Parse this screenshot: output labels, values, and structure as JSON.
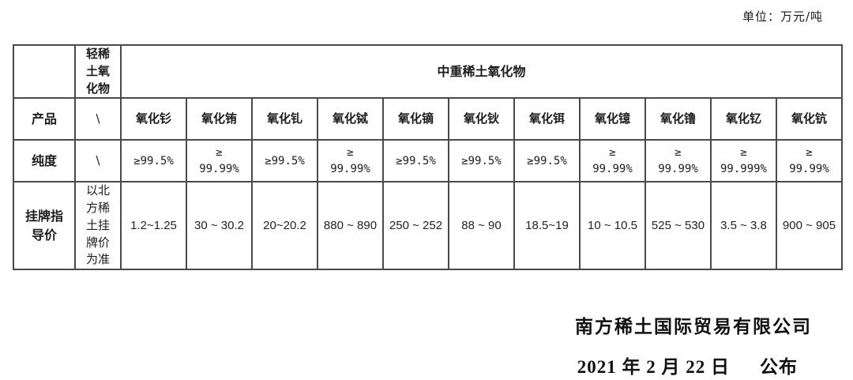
{
  "unit_label": "单位：万元/吨",
  "table": {
    "light_group_header": [
      "轻稀",
      "土氧",
      "化物"
    ],
    "heavy_group_header": "中重稀土氧化物",
    "row_labels": {
      "product": "产品",
      "purity": "纯度",
      "price": [
        "挂牌指",
        "导价"
      ]
    },
    "light_column": {
      "product": "\\",
      "purity": "\\",
      "price_basis": [
        "以北",
        "方稀",
        "土挂",
        "牌价",
        "为准"
      ]
    },
    "columns": [
      {
        "name": "氧化钐",
        "purity": [
          "≥99.5%"
        ],
        "price": "1.2~1.25"
      },
      {
        "name": "氧化铕",
        "purity": [
          "≥",
          "99.99%"
        ],
        "price": "30 ~ 30.2"
      },
      {
        "name": "氧化钆",
        "purity": [
          "≥99.5%"
        ],
        "price": "20~20.2"
      },
      {
        "name": "氧化铽",
        "purity": [
          "≥",
          "99.99%"
        ],
        "price": "880 ~ 890"
      },
      {
        "name": "氧化镝",
        "purity": [
          "≥99.5%"
        ],
        "price": "250 ~ 252"
      },
      {
        "name": "氧化钬",
        "purity": [
          "≥99.5%"
        ],
        "price": "88 ~ 90"
      },
      {
        "name": "氧化铒",
        "purity": [
          "≥99.5%"
        ],
        "price": "18.5~19"
      },
      {
        "name": "氧化镱",
        "purity": [
          "≥",
          "99.99%"
        ],
        "price": "10 ~ 10.5"
      },
      {
        "name": "氧化镥",
        "purity": [
          "≥",
          "99.99%"
        ],
        "price": "525 ~ 530"
      },
      {
        "name": "氧化钇",
        "purity": [
          "≥",
          "99.999%"
        ],
        "price": "3.5 ~ 3.8"
      },
      {
        "name": "氧化钪",
        "purity": [
          "≥",
          "99.99%"
        ],
        "price": "900 ~ 905"
      }
    ]
  },
  "footer": {
    "company": "南方稀土国际贸易有限公司",
    "publish_date": "2021 年 2 月 22 日",
    "publish_label": "公布"
  }
}
